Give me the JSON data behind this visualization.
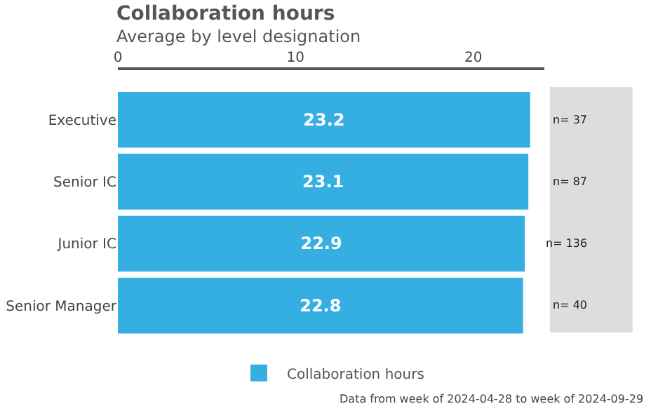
{
  "chart_data": {
    "type": "bar",
    "orientation": "horizontal",
    "title": "Collaboration hours",
    "subtitle": "Average by level designation",
    "categories": [
      "Executive",
      "Senior IC",
      "Junior IC",
      "Senior Manager"
    ],
    "series": [
      {
        "name": "Collaboration hours",
        "color": "#35aee2",
        "values": [
          23.2,
          23.1,
          22.9,
          22.8
        ]
      }
    ],
    "xlim": [
      0,
      24
    ],
    "xticks": [
      0,
      10,
      20
    ],
    "grid": false,
    "legend": "bottom",
    "data_labels": true,
    "annotations": [
      "n= 37",
      "n= 87",
      "n= 136",
      "n= 40",
      "Data from week of 2024-04-28 to week of 2024-09-29"
    ]
  }
}
